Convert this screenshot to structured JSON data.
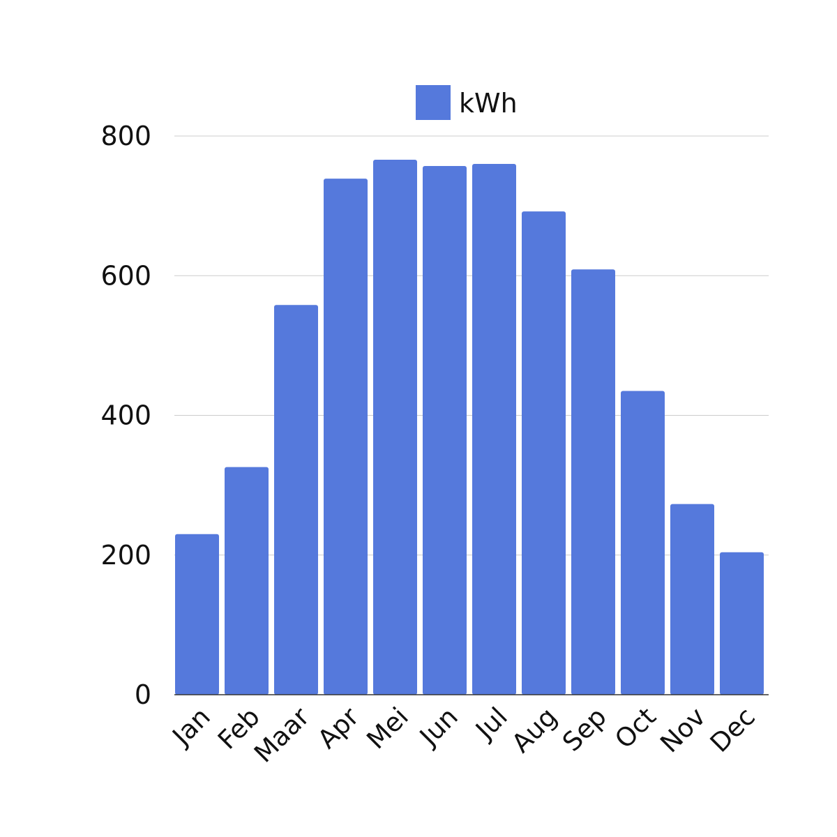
{
  "chart_data": {
    "type": "bar",
    "title": "",
    "xlabel": "",
    "ylabel": "",
    "categories": [
      "Jan",
      "Feb",
      "Maar",
      "Apr",
      "Mei",
      "Jun",
      "Jul",
      "Aug",
      "Sep",
      "Oct",
      "Nov",
      "Dec"
    ],
    "series": [
      {
        "name": "kWh",
        "color": "#5579dc",
        "values": [
          230,
          326,
          558,
          739,
          766,
          757,
          760,
          692,
          609,
          435,
          273,
          204
        ]
      }
    ],
    "ylim": [
      0,
      800
    ],
    "yticks": [
      "0",
      "200",
      "400",
      "600",
      "800"
    ],
    "grid": true,
    "legend": "top-center"
  }
}
